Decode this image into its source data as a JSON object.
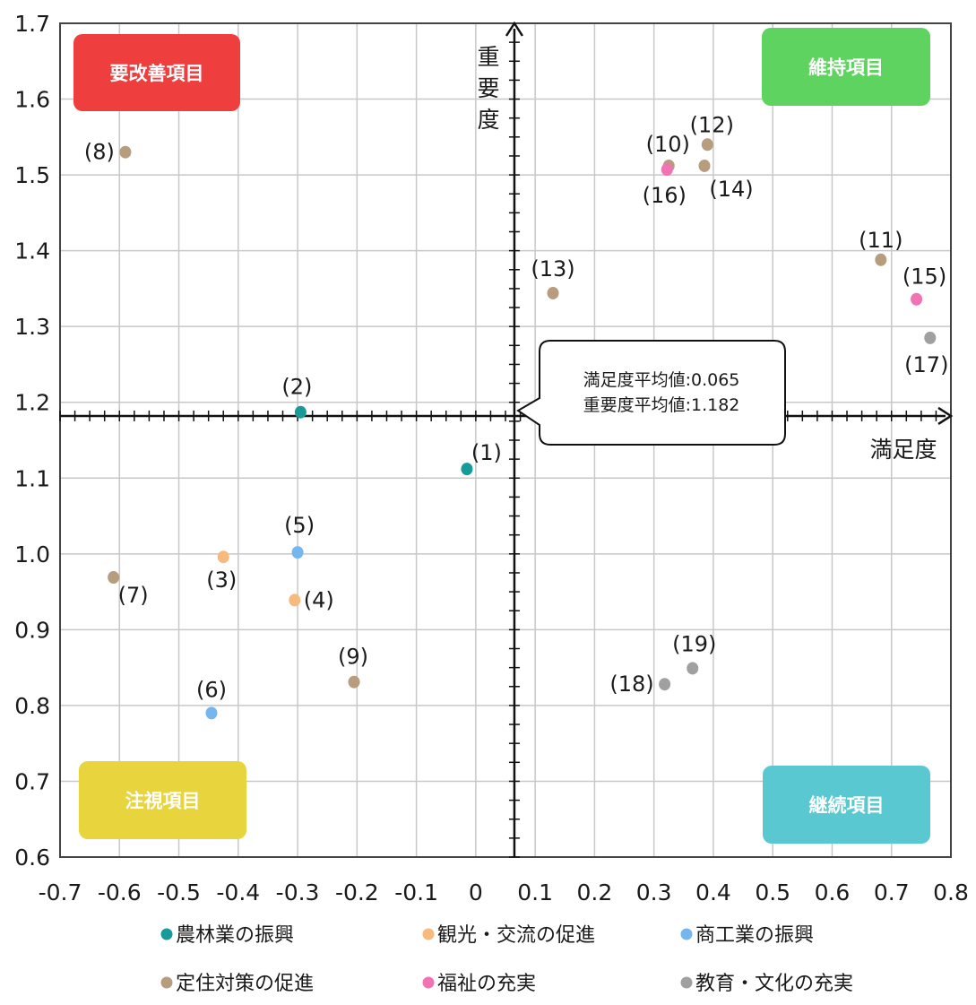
{
  "chart_data": {
    "type": "scatter",
    "xlabel": "満足度",
    "ylabel": "重要度",
    "xlim": [
      -0.7,
      0.8
    ],
    "ylim": [
      0.6,
      1.7
    ],
    "x_ticks": [
      "-0.7",
      "-0.6",
      "-0.5",
      "-0.4",
      "-0.3",
      "-0.2",
      "-0.1",
      "0",
      "0.1",
      "0.2",
      "0.3",
      "0.4",
      "0.5",
      "0.6",
      "0.7",
      "0.8"
    ],
    "y_ticks": [
      "0.6",
      "0.7",
      "0.8",
      "0.9",
      "1.0",
      "1.1",
      "1.2",
      "1.3",
      "1.4",
      "1.5",
      "1.6",
      "1.7"
    ],
    "grid": true,
    "legend_position": "bottom",
    "averages": {
      "x": 0.065,
      "y": 1.182
    },
    "callout": [
      "満足度平均値:0.065",
      "重要度平均値:1.182"
    ],
    "quadrants": [
      {
        "label": "要改善項目",
        "color": "#ef3e3e",
        "position": "top-left"
      },
      {
        "label": "維持項目",
        "color": "#5fd35f",
        "position": "top-right"
      },
      {
        "label": "注視項目",
        "color": "#e8d43c",
        "position": "bottom-left"
      },
      {
        "label": "継続項目",
        "color": "#5ac8d0",
        "position": "bottom-right"
      }
    ],
    "series": [
      {
        "name": "農林業の振興",
        "color": "#179a9a",
        "points": [
          {
            "label": "(1)",
            "x": -0.015,
            "y": 1.112
          },
          {
            "label": "(2)",
            "x": -0.295,
            "y": 1.187
          }
        ]
      },
      {
        "name": "観光・交流の促進",
        "color": "#f8b97c",
        "points": [
          {
            "label": "(3)",
            "x": -0.425,
            "y": 0.996
          },
          {
            "label": "(4)",
            "x": -0.305,
            "y": 0.939
          }
        ]
      },
      {
        "name": "商工業の振興",
        "color": "#76b6ee",
        "points": [
          {
            "label": "(5)",
            "x": -0.3,
            "y": 1.002
          },
          {
            "label": "(6)",
            "x": -0.445,
            "y": 0.79
          }
        ]
      },
      {
        "name": "定住対策の促進",
        "color": "#b79c7e",
        "points": [
          {
            "label": "(7)",
            "x": -0.61,
            "y": 0.969
          },
          {
            "label": "(8)",
            "x": -0.59,
            "y": 1.53
          },
          {
            "label": "(9)",
            "x": -0.205,
            "y": 0.831
          },
          {
            "label": "(10)",
            "x": 0.325,
            "y": 1.512
          },
          {
            "label": "(11)",
            "x": 0.682,
            "y": 1.388
          },
          {
            "label": "(12)",
            "x": 0.39,
            "y": 1.54
          },
          {
            "label": "(13)",
            "x": 0.13,
            "y": 1.344
          },
          {
            "label": "(14)",
            "x": 0.385,
            "y": 1.512
          }
        ]
      },
      {
        "name": "福祉の充実",
        "color": "#f173b4",
        "points": [
          {
            "label": "(15)",
            "x": 0.742,
            "y": 1.336
          },
          {
            "label": "(16)",
            "x": 0.322,
            "y": 1.507
          }
        ]
      },
      {
        "name": "教育・文化の充実",
        "color": "#a0a0a0",
        "points": [
          {
            "label": "(17)",
            "x": 0.765,
            "y": 1.285
          },
          {
            "label": "(18)",
            "x": 0.318,
            "y": 0.828
          },
          {
            "label": "(19)",
            "x": 0.365,
            "y": 0.849
          }
        ]
      }
    ]
  }
}
